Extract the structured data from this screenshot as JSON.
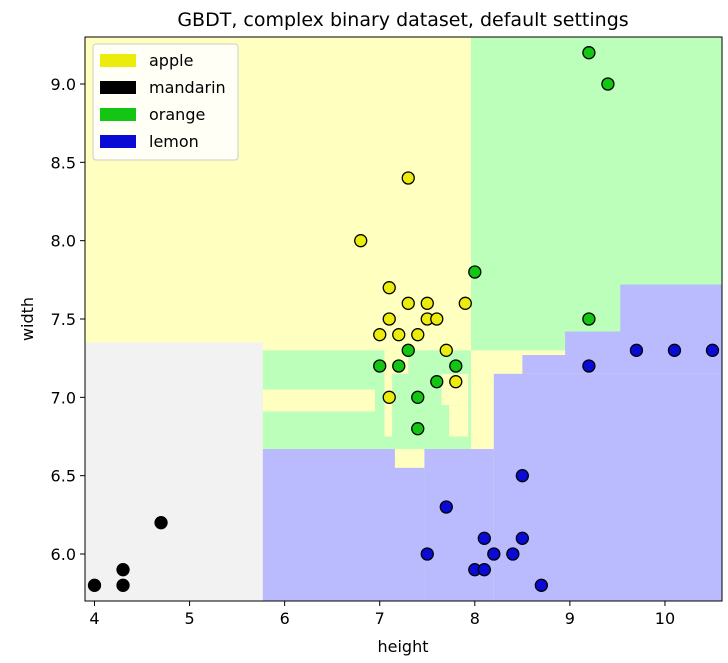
{
  "chart_data": {
    "type": "scatter",
    "title": "GBDT, complex binary dataset, default settings",
    "xlabel": "height",
    "ylabel": "width",
    "xlim": [
      3.9,
      10.6
    ],
    "ylim": [
      5.7,
      9.3
    ],
    "xticks": [
      4,
      5,
      6,
      7,
      8,
      9,
      10
    ],
    "yticks": [
      6.0,
      6.5,
      7.0,
      7.5,
      8.0,
      8.5,
      9.0
    ],
    "legend_position": "top-left",
    "grid": false,
    "classes": [
      {
        "name": "apple",
        "color": "#ecec0c",
        "region_color": "#ffffbf"
      },
      {
        "name": "mandarin",
        "color": "#000000",
        "region_color": "#f2f2f2"
      },
      {
        "name": "orange",
        "color": "#13c613",
        "region_color": "#bbffbb"
      },
      {
        "name": "lemon",
        "color": "#0a0ad6",
        "region_color": "#babaff"
      }
    ],
    "decision_regions": [
      {
        "class": "mandarin",
        "x": [
          3.9,
          5.77
        ],
        "y": [
          5.7,
          7.35
        ]
      },
      {
        "class": "orange",
        "x": [
          7.96,
          10.6
        ],
        "y": [
          7.3,
          9.3
        ]
      },
      {
        "class": "orange",
        "x": [
          5.77,
          7.96
        ],
        "y": [
          6.67,
          7.3
        ]
      },
      {
        "class": "lemon",
        "x": [
          5.77,
          7.16
        ],
        "y": [
          5.7,
          6.67
        ]
      },
      {
        "class": "lemon",
        "x": [
          7.16,
          7.47
        ],
        "y": [
          5.7,
          6.55
        ]
      },
      {
        "class": "lemon",
        "x": [
          7.47,
          8.2
        ],
        "y": [
          5.7,
          6.67
        ]
      },
      {
        "class": "lemon",
        "x": [
          8.2,
          10.6
        ],
        "y": [
          5.7,
          7.15
        ]
      },
      {
        "class": "lemon",
        "x": [
          8.5,
          10.6
        ],
        "y": [
          7.15,
          7.27
        ]
      },
      {
        "class": "lemon",
        "x": [
          8.95,
          10.6
        ],
        "y": [
          7.27,
          7.42
        ]
      },
      {
        "class": "lemon",
        "x": [
          9.53,
          10.6
        ],
        "y": [
          7.42,
          7.72
        ]
      },
      {
        "class": "apple",
        "x": [
          5.77,
          6.95
        ],
        "y": [
          6.91,
          7.05
        ]
      },
      {
        "class": "apple",
        "x": [
          7.05,
          7.13
        ],
        "y": [
          6.75,
          7.3
        ]
      },
      {
        "class": "apple",
        "x": [
          7.65,
          7.93
        ],
        "y": [
          6.95,
          7.15
        ]
      },
      {
        "class": "apple",
        "x": [
          7.73,
          7.93
        ],
        "y": [
          6.75,
          6.95
        ]
      },
      {
        "class": "apple",
        "x": [
          7.1,
          7.3
        ],
        "y": [
          7.15,
          7.3
        ]
      }
    ],
    "points": [
      {
        "class": "apple",
        "x": 6.8,
        "y": 8.0
      },
      {
        "class": "apple",
        "x": 7.3,
        "y": 8.4
      },
      {
        "class": "apple",
        "x": 7.1,
        "y": 7.7
      },
      {
        "class": "apple",
        "x": 7.3,
        "y": 7.6
      },
      {
        "class": "apple",
        "x": 7.5,
        "y": 7.6
      },
      {
        "class": "apple",
        "x": 7.9,
        "y": 7.6
      },
      {
        "class": "apple",
        "x": 7.1,
        "y": 7.5
      },
      {
        "class": "apple",
        "x": 7.5,
        "y": 7.5
      },
      {
        "class": "apple",
        "x": 7.6,
        "y": 7.5
      },
      {
        "class": "apple",
        "x": 7.0,
        "y": 7.4
      },
      {
        "class": "apple",
        "x": 7.2,
        "y": 7.4
      },
      {
        "class": "apple",
        "x": 7.4,
        "y": 7.4
      },
      {
        "class": "apple",
        "x": 7.7,
        "y": 7.3
      },
      {
        "class": "apple",
        "x": 7.8,
        "y": 7.1
      },
      {
        "class": "apple",
        "x": 7.1,
        "y": 7.0
      },
      {
        "class": "mandarin",
        "x": 4.0,
        "y": 5.8
      },
      {
        "class": "mandarin",
        "x": 4.3,
        "y": 5.8
      },
      {
        "class": "mandarin",
        "x": 4.3,
        "y": 5.9
      },
      {
        "class": "mandarin",
        "x": 4.7,
        "y": 6.2
      },
      {
        "class": "orange",
        "x": 9.2,
        "y": 9.2
      },
      {
        "class": "orange",
        "x": 9.4,
        "y": 9.0
      },
      {
        "class": "orange",
        "x": 8.0,
        "y": 7.8
      },
      {
        "class": "orange",
        "x": 9.2,
        "y": 7.5
      },
      {
        "class": "orange",
        "x": 7.3,
        "y": 7.3
      },
      {
        "class": "orange",
        "x": 7.0,
        "y": 7.2
      },
      {
        "class": "orange",
        "x": 7.2,
        "y": 7.2
      },
      {
        "class": "orange",
        "x": 7.8,
        "y": 7.2
      },
      {
        "class": "orange",
        "x": 7.6,
        "y": 7.1
      },
      {
        "class": "orange",
        "x": 7.4,
        "y": 7.0
      },
      {
        "class": "orange",
        "x": 7.4,
        "y": 6.8
      },
      {
        "class": "lemon",
        "x": 9.7,
        "y": 7.3
      },
      {
        "class": "lemon",
        "x": 10.1,
        "y": 7.3
      },
      {
        "class": "lemon",
        "x": 10.5,
        "y": 7.3
      },
      {
        "class": "lemon",
        "x": 9.2,
        "y": 7.2
      },
      {
        "class": "lemon",
        "x": 8.5,
        "y": 6.5
      },
      {
        "class": "lemon",
        "x": 7.7,
        "y": 6.3
      },
      {
        "class": "lemon",
        "x": 8.1,
        "y": 6.1
      },
      {
        "class": "lemon",
        "x": 8.5,
        "y": 6.1
      },
      {
        "class": "lemon",
        "x": 7.5,
        "y": 6.0
      },
      {
        "class": "lemon",
        "x": 8.2,
        "y": 6.0
      },
      {
        "class": "lemon",
        "x": 8.4,
        "y": 6.0
      },
      {
        "class": "lemon",
        "x": 8.0,
        "y": 5.9
      },
      {
        "class": "lemon",
        "x": 8.1,
        "y": 5.9
      },
      {
        "class": "lemon",
        "x": 8.7,
        "y": 5.8
      }
    ]
  }
}
